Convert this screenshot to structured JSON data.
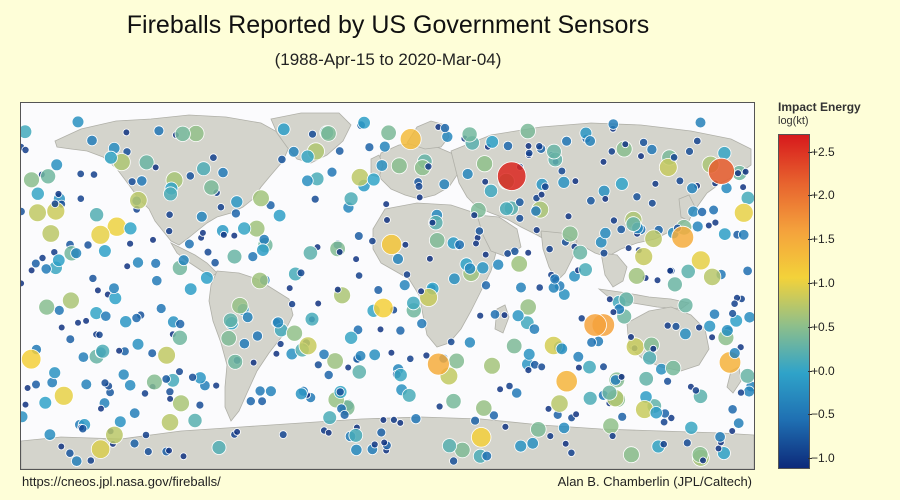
{
  "header": {
    "title": "Fireballs Reported by US Government Sensors",
    "subtitle": "(1988-Apr-15 to 2020-Mar-04)"
  },
  "footer": {
    "source": "https://cneos.jpl.nasa.gov/fireballs/",
    "author": "Alan B. Chamberlin (JPL/Caltech)"
  },
  "colorbar": {
    "title": "Impact Energy",
    "unit": "log(kt)",
    "ticks": [
      "+2.5",
      "+2.0",
      "+1.5",
      "+1.0",
      "+0.5",
      "+0.0",
      "−0.5",
      "−1.0"
    ],
    "range": [
      -1.1,
      2.7
    ],
    "colors": [
      "#0d2a7a",
      "#1f6fb2",
      "#2fa3c9",
      "#8fbf8a",
      "#f3d23a",
      "#f4a13c",
      "#e7622e",
      "#d7191c"
    ]
  },
  "map": {
    "land_color": "#d4d4cc",
    "ocean_color": "#fbfbfd",
    "notable_events": [
      {
        "lon": 61,
        "lat": 55,
        "energy": 2.6
      },
      {
        "lon": 164,
        "lat": 57,
        "energy": 2.2
      },
      {
        "lon": 106,
        "lat": -6,
        "energy": 1.6
      },
      {
        "lon": 102,
        "lat": -6,
        "energy": 1.6
      },
      {
        "lon": 145,
        "lat": 30,
        "energy": 1.5
      },
      {
        "lon": 46,
        "lat": -52,
        "energy": 1.1
      },
      {
        "lon": 25,
        "lat": -22,
        "energy": 1.5
      },
      {
        "lon": 88,
        "lat": -29,
        "energy": 1.4
      },
      {
        "lon": -175,
        "lat": -20,
        "energy": 1.1
      },
      {
        "lon": -159,
        "lat": -35,
        "energy": 1.0
      },
      {
        "lon": -141,
        "lat": 31,
        "energy": 1.0
      },
      {
        "lon": 2,
        "lat": 27,
        "energy": 1.2
      },
      {
        "lon": -2,
        "lat": 1,
        "energy": 1.1
      },
      {
        "lon": 175,
        "lat": 40,
        "energy": 1.0
      }
    ]
  }
}
